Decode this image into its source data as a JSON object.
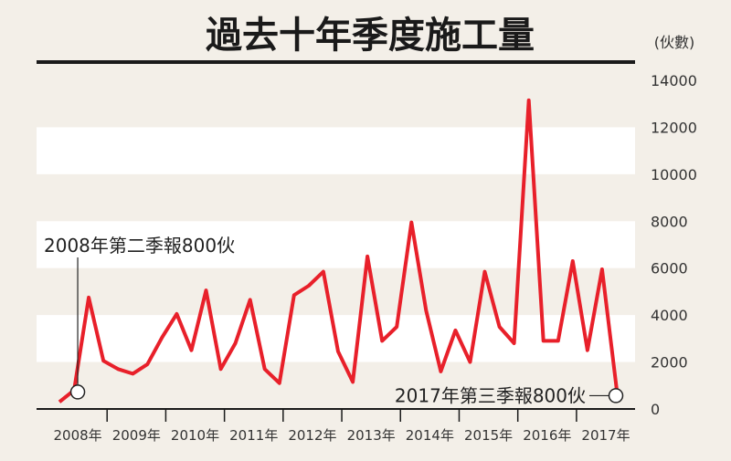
{
  "chart_data": {
    "type": "line",
    "title": "過去十年季度施工量",
    "unit": "(伙數)",
    "x_tick_labels": [
      "2008年",
      "2009年",
      "2010年",
      "2011年",
      "2012年",
      "2013年",
      "2014年",
      "2015年",
      "2016年",
      "2017年"
    ],
    "y_tick_labels": [
      "0",
      "2000",
      "4000",
      "6000",
      "8000",
      "10000",
      "12000",
      "14000"
    ],
    "ylim": [
      0,
      14000
    ],
    "grid": "alternating horizontal bands",
    "line_color": "#e8202a",
    "x": [
      "2008Q1",
      "2008Q2",
      "2008Q3",
      "2008Q4",
      "2009Q1",
      "2009Q2",
      "2009Q3",
      "2009Q4",
      "2010Q1",
      "2010Q2",
      "2010Q3",
      "2010Q4",
      "2011Q1",
      "2011Q2",
      "2011Q3",
      "2011Q4",
      "2012Q1",
      "2012Q2",
      "2012Q3",
      "2012Q4",
      "2013Q1",
      "2013Q2",
      "2013Q3",
      "2013Q4",
      "2014Q1",
      "2014Q2",
      "2014Q3",
      "2014Q4",
      "2015Q1",
      "2015Q2",
      "2015Q3",
      "2015Q4",
      "2016Q1",
      "2016Q2",
      "2016Q3",
      "2016Q4",
      "2017Q1",
      "2017Q2",
      "2017Q3"
    ],
    "values": [
      300,
      800,
      4750,
      2050,
      1700,
      1500,
      1900,
      3050,
      4050,
      2500,
      5050,
      1700,
      2800,
      4650,
      1700,
      1100,
      4850,
      5250,
      5850,
      2450,
      1150,
      6500,
      2900,
      3500,
      7950,
      4200,
      1600,
      3350,
      2000,
      5850,
      3500,
      2800,
      13150,
      2900,
      2900,
      6300,
      2500,
      5950,
      800
    ],
    "annotations": [
      {
        "text": "2008年第二季報800伙",
        "point_index": 1
      },
      {
        "text": "2017年第三季報800伙",
        "point_index": 38
      }
    ]
  }
}
